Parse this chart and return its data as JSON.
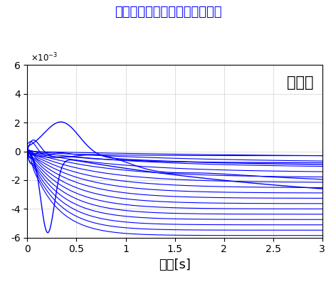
{
  "title": "制御あり（中程度の制御性能）",
  "xlabel": "時間[s]",
  "annotation": "不安定",
  "xlim": [
    0,
    3
  ],
  "ylim": [
    -0.006,
    0.006
  ],
  "yticks": [
    -0.006,
    -0.004,
    -0.002,
    0,
    0.002,
    0.004,
    0.006
  ],
  "xticks": [
    0,
    0.5,
    1,
    1.5,
    2,
    2.5,
    3
  ],
  "line_color": "#0000FF",
  "title_color": "#0000FF",
  "background_color": "#ffffff"
}
